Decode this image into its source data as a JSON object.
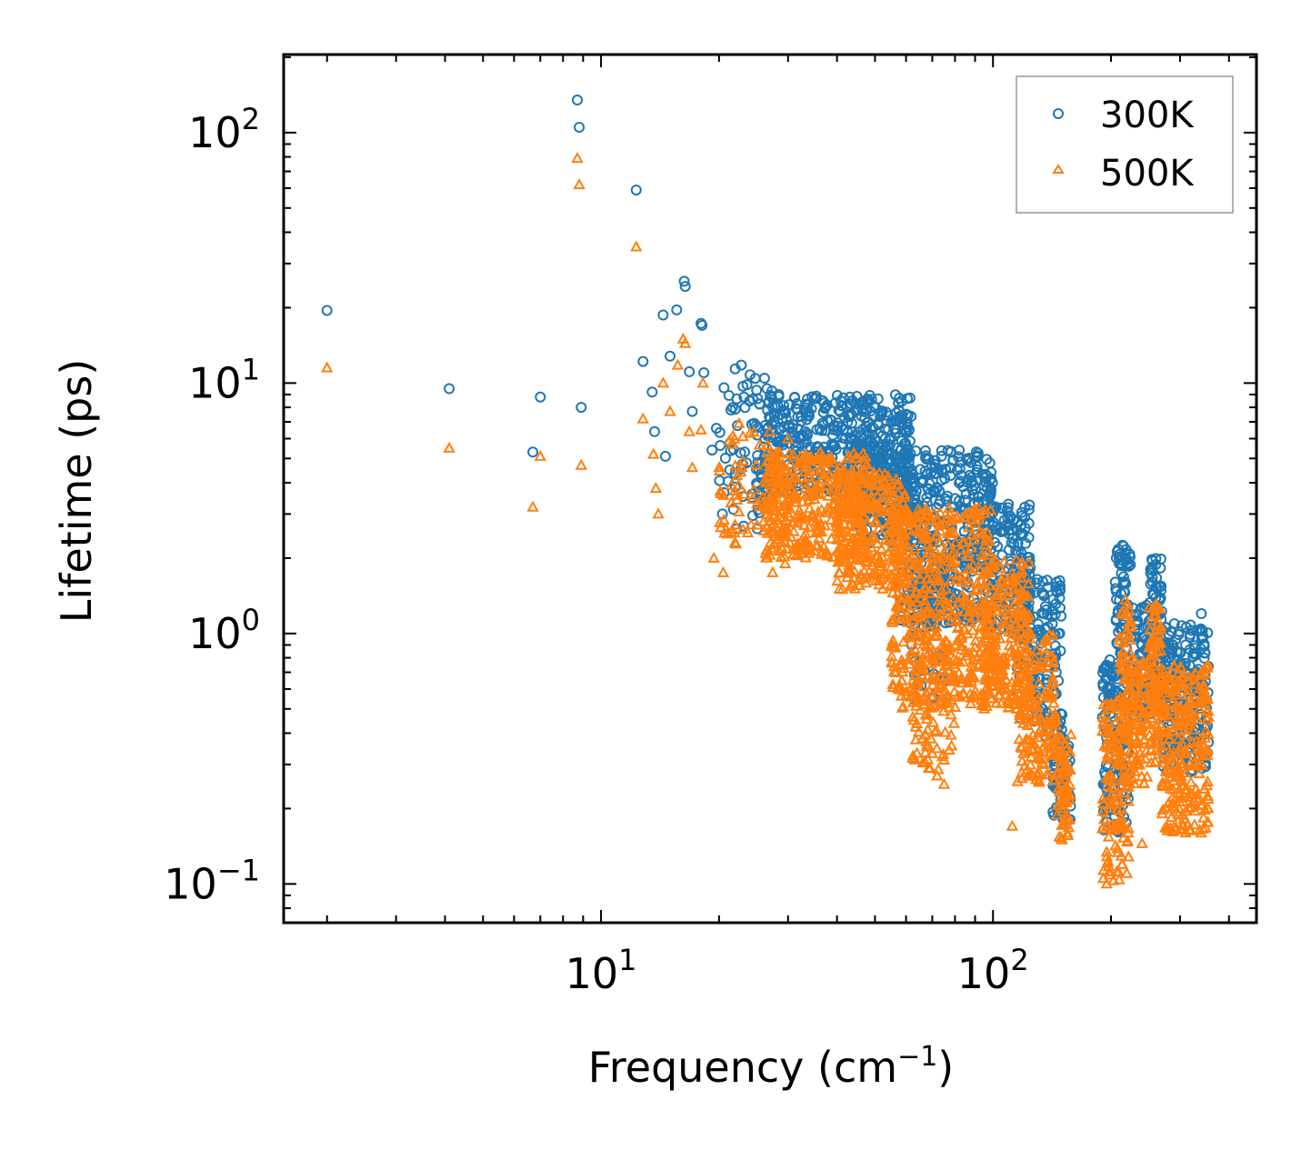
{
  "chart_data": {
    "type": "scatter",
    "xscale": "log",
    "yscale": "log",
    "xlabel": "Frequency (cm",
    "xlabel_sup": "−1",
    "xlabel_end": ")",
    "ylabel": "Lifetime (ps)",
    "xlim": [
      1.55,
      470
    ],
    "ylim": [
      0.07,
      205
    ],
    "legend_position": "top-right",
    "x_ticks": [
      {
        "value": 10,
        "base": "10",
        "exp": "1"
      },
      {
        "value": 100,
        "base": "10",
        "exp": "2"
      }
    ],
    "y_ticks": [
      {
        "value": 0.1,
        "base": "10",
        "exp": "−1"
      },
      {
        "value": 1,
        "base": "10",
        "exp": "0"
      },
      {
        "value": 10,
        "base": "10",
        "exp": "1"
      },
      {
        "value": 100,
        "base": "10",
        "exp": "2"
      }
    ],
    "series": [
      {
        "name": "300K",
        "marker": "circle",
        "color": "#1f77b4",
        "sample_points": [
          [
            2.0,
            19.5
          ],
          [
            4.1,
            9.5
          ],
          [
            6.7,
            5.3
          ],
          [
            7.0,
            8.8
          ],
          [
            8.7,
            135
          ],
          [
            8.8,
            105
          ],
          [
            8.9,
            8.0
          ],
          [
            12.3,
            59
          ],
          [
            12.8,
            12.2
          ],
          [
            13.5,
            9.2
          ],
          [
            13.7,
            6.4
          ],
          [
            14.4,
            18.7
          ],
          [
            14.6,
            5.1
          ],
          [
            15.0,
            12.8
          ],
          [
            15.6,
            19.6
          ],
          [
            16.3,
            25.5
          ],
          [
            16.4,
            24.3
          ],
          [
            16.8,
            11.1
          ],
          [
            17.1,
            7.7
          ],
          [
            18.0,
            17.3
          ],
          [
            18.1,
            17.0
          ],
          [
            18.3,
            11.0
          ],
          [
            19.2,
            5.4
          ],
          [
            19.7,
            6.6
          ],
          [
            20.4,
            3.0
          ],
          [
            21.3,
            4.5
          ],
          [
            22.0,
            11.4
          ],
          [
            22.8,
            11.8
          ],
          [
            23.5,
            4.8
          ],
          [
            24.0,
            10.8
          ],
          [
            25.0,
            6.2
          ],
          [
            26.5,
            9.5
          ],
          [
            27.3,
            9.3
          ],
          [
            28.4,
            9.0
          ],
          [
            29.7,
            7.2
          ],
          [
            31.0,
            5.4
          ],
          [
            33.5,
            6.3
          ],
          [
            35.0,
            8.7
          ],
          [
            37.0,
            6.8
          ],
          [
            40.0,
            6.5
          ],
          [
            42.0,
            6.0
          ],
          [
            45.0,
            5.8
          ],
          [
            50.0,
            6.0
          ],
          [
            54.0,
            7.4
          ],
          [
            55.0,
            7.0
          ],
          [
            58.0,
            5.0
          ],
          [
            62.0,
            4.5
          ],
          [
            66.0,
            4.0
          ],
          [
            72.0,
            3.8
          ],
          [
            78.0,
            5.3
          ],
          [
            82.0,
            5.4
          ],
          [
            88.0,
            4.0
          ],
          [
            92.0,
            3.5
          ],
          [
            100.0,
            3.2
          ],
          [
            110.0,
            2.5
          ],
          [
            118.0,
            2.1
          ],
          [
            125.0,
            1.6
          ],
          [
            135.0,
            1.2
          ],
          [
            145.0,
            0.7
          ],
          [
            155.0,
            0.3
          ],
          [
            195.0,
            0.25
          ],
          [
            200.0,
            0.55
          ],
          [
            210.0,
            1.9
          ],
          [
            214.0,
            2.25
          ],
          [
            220.0,
            0.8
          ],
          [
            240.0,
            0.9
          ],
          [
            255.0,
            1.95
          ],
          [
            265.0,
            1.2
          ],
          [
            280.0,
            0.8
          ],
          [
            310.0,
            0.9
          ],
          [
            340.0,
            1.2
          ]
        ],
        "bands": [
          [
            20,
            28,
            2.6,
            10.5,
            70
          ],
          [
            26,
            62,
            3.6,
            9.0,
            420
          ],
          [
            45,
            62,
            2.3,
            6.2,
            150
          ],
          [
            58,
            100,
            1.1,
            5.4,
            400
          ],
          [
            62,
            78,
            0.55,
            1.6,
            60
          ],
          [
            95,
            125,
            1.0,
            3.3,
            160
          ],
          [
            115,
            150,
            0.38,
            1.7,
            150
          ],
          [
            142,
            158,
            0.18,
            0.38,
            60
          ],
          [
            190,
            222,
            0.16,
            0.8,
            130
          ],
          [
            205,
            225,
            0.8,
            2.25,
            60
          ],
          [
            225,
            252,
            0.45,
            1.3,
            70
          ],
          [
            250,
            270,
            0.5,
            2.0,
            80
          ],
          [
            270,
            355,
            0.28,
            1.1,
            220
          ]
        ]
      },
      {
        "name": "500K",
        "marker": "triangle",
        "color": "#ff7f0e",
        "sample_points": [
          [
            2.0,
            11.5
          ],
          [
            4.1,
            5.5
          ],
          [
            6.7,
            3.2
          ],
          [
            7.0,
            5.1
          ],
          [
            8.7,
            79
          ],
          [
            8.8,
            62
          ],
          [
            8.9,
            4.7
          ],
          [
            12.3,
            35
          ],
          [
            12.8,
            7.2
          ],
          [
            13.6,
            5.2
          ],
          [
            13.8,
            3.8
          ],
          [
            14.0,
            3.0
          ],
          [
            14.4,
            10.0
          ],
          [
            15.0,
            7.7
          ],
          [
            15.7,
            11.8
          ],
          [
            16.2,
            15.0
          ],
          [
            16.4,
            14.4
          ],
          [
            16.8,
            6.4
          ],
          [
            17.1,
            4.6
          ],
          [
            18.0,
            6.5
          ],
          [
            18.2,
            10.0
          ],
          [
            19.4,
            2.0
          ],
          [
            20.5,
            1.75
          ],
          [
            21.5,
            3.9
          ],
          [
            22.5,
            6.9
          ],
          [
            23.0,
            2.6
          ],
          [
            24.0,
            6.3
          ],
          [
            25.0,
            3.3
          ],
          [
            26.0,
            2.8
          ],
          [
            27.4,
            1.75
          ],
          [
            28.5,
            2.5
          ],
          [
            29.5,
            1.9
          ],
          [
            33.0,
            2.7
          ],
          [
            36.0,
            2.4
          ],
          [
            40.0,
            3.6
          ],
          [
            45.0,
            2.4
          ],
          [
            50.0,
            2.8
          ],
          [
            55.0,
            2.2
          ],
          [
            60.0,
            1.3
          ],
          [
            65.0,
            1.0
          ],
          [
            68.0,
            0.36
          ],
          [
            72.0,
            0.27
          ],
          [
            75.0,
            0.25
          ],
          [
            80.0,
            0.9
          ],
          [
            88.0,
            0.7
          ],
          [
            95.0,
            0.5
          ],
          [
            105.0,
            0.6
          ],
          [
            112.0,
            0.17
          ],
          [
            125.0,
            0.6
          ],
          [
            135.0,
            0.3
          ],
          [
            150.0,
            0.15
          ],
          [
            195.0,
            0.1
          ],
          [
            210.0,
            0.3
          ],
          [
            220.0,
            1.2
          ],
          [
            240.0,
            0.145
          ],
          [
            260.0,
            1.3
          ],
          [
            280.0,
            0.3
          ],
          [
            310.0,
            0.16
          ],
          [
            340.0,
            0.7
          ]
        ],
        "bands": [
          [
            20,
            30,
            2.2,
            6.4,
            80
          ],
          [
            26,
            48,
            2.0,
            5.3,
            350
          ],
          [
            40,
            60,
            1.5,
            4.4,
            250
          ],
          [
            55,
            100,
            0.5,
            3.2,
            500
          ],
          [
            62,
            80,
            0.28,
            0.9,
            80
          ],
          [
            95,
            125,
            0.5,
            2.0,
            200
          ],
          [
            115,
            145,
            0.25,
            1.0,
            160
          ],
          [
            145,
            158,
            0.15,
            0.4,
            70
          ],
          [
            190,
            222,
            0.1,
            0.55,
            140
          ],
          [
            210,
            225,
            0.4,
            1.4,
            50
          ],
          [
            222,
            250,
            0.25,
            0.8,
            100
          ],
          [
            250,
            270,
            0.3,
            1.3,
            90
          ],
          [
            270,
            355,
            0.16,
            0.75,
            260
          ]
        ]
      }
    ]
  }
}
